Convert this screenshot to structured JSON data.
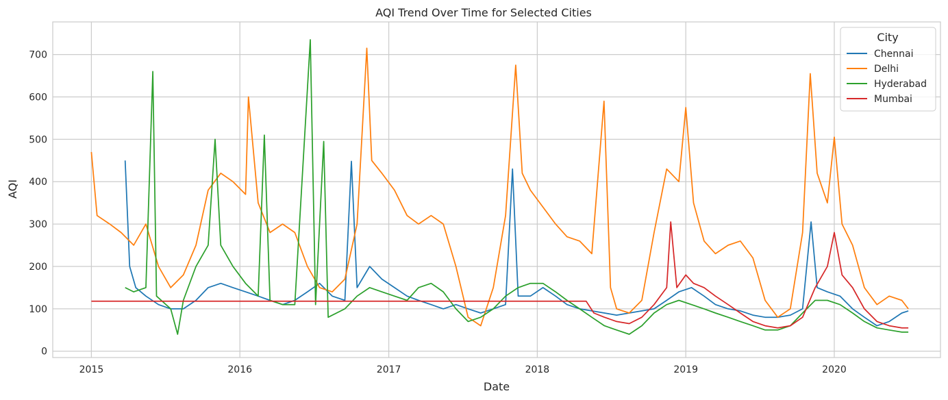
{
  "chart_data": {
    "type": "line",
    "title": "AQI Trend Over Time for Selected Cities",
    "xlabel": "Date",
    "ylabel": "AQI",
    "xlim": [
      "2014-09-28",
      "2020-09-18"
    ],
    "ylim": [
      -15,
      777
    ],
    "x_ticks": [
      "2015",
      "2016",
      "2017",
      "2018",
      "2019",
      "2020"
    ],
    "y_ticks": [
      0,
      100,
      200,
      300,
      400,
      500,
      600,
      700
    ],
    "grid": true,
    "legend": {
      "title": "City",
      "position": "top-right"
    },
    "series": [
      {
        "name": "Chennai",
        "color": "#1f77b4",
        "points": [
          [
            "2015-03-25",
            450
          ],
          [
            "2015-04-05",
            200
          ],
          [
            "2015-04-20",
            150
          ],
          [
            "2015-05-15",
            130
          ],
          [
            "2015-06-15",
            110
          ],
          [
            "2015-07-15",
            100
          ],
          [
            "2015-08-15",
            100
          ],
          [
            "2015-09-15",
            120
          ],
          [
            "2015-10-15",
            150
          ],
          [
            "2015-11-15",
            160
          ],
          [
            "2015-12-15",
            150
          ],
          [
            "2016-01-15",
            140
          ],
          [
            "2016-02-15",
            130
          ],
          [
            "2016-03-15",
            120
          ],
          [
            "2016-04-15",
            110
          ],
          [
            "2016-05-15",
            120
          ],
          [
            "2016-06-15",
            140
          ],
          [
            "2016-07-15",
            160
          ],
          [
            "2016-08-15",
            130
          ],
          [
            "2016-09-15",
            120
          ],
          [
            "2016-10-01",
            448
          ],
          [
            "2016-10-15",
            150
          ],
          [
            "2016-11-15",
            200
          ],
          [
            "2016-12-15",
            170
          ],
          [
            "2017-01-15",
            150
          ],
          [
            "2017-02-15",
            130
          ],
          [
            "2017-03-15",
            120
          ],
          [
            "2017-04-15",
            110
          ],
          [
            "2017-05-15",
            100
          ],
          [
            "2017-06-15",
            110
          ],
          [
            "2017-07-15",
            100
          ],
          [
            "2017-08-15",
            90
          ],
          [
            "2017-09-15",
            100
          ],
          [
            "2017-10-15",
            110
          ],
          [
            "2017-11-01",
            430
          ],
          [
            "2017-11-15",
            130
          ],
          [
            "2017-12-15",
            130
          ],
          [
            "2018-01-15",
            150
          ],
          [
            "2018-02-15",
            130
          ],
          [
            "2018-03-15",
            110
          ],
          [
            "2018-04-15",
            100
          ],
          [
            "2018-05-15",
            95
          ],
          [
            "2018-06-15",
            90
          ],
          [
            "2018-07-15",
            85
          ],
          [
            "2018-08-15",
            90
          ],
          [
            "2018-09-15",
            95
          ],
          [
            "2018-10-15",
            100
          ],
          [
            "2018-11-15",
            120
          ],
          [
            "2018-12-15",
            140
          ],
          [
            "2019-01-15",
            150
          ],
          [
            "2019-02-15",
            130
          ],
          [
            "2019-03-15",
            110
          ],
          [
            "2019-04-15",
            100
          ],
          [
            "2019-05-15",
            95
          ],
          [
            "2019-06-15",
            85
          ],
          [
            "2019-07-15",
            80
          ],
          [
            "2019-08-15",
            80
          ],
          [
            "2019-09-15",
            85
          ],
          [
            "2019-10-15",
            100
          ],
          [
            "2019-11-05",
            305
          ],
          [
            "2019-11-20",
            150
          ],
          [
            "2019-12-15",
            140
          ],
          [
            "2020-01-15",
            130
          ],
          [
            "2020-02-15",
            100
          ],
          [
            "2020-03-15",
            80
          ],
          [
            "2020-04-15",
            60
          ],
          [
            "2020-05-15",
            70
          ],
          [
            "2020-06-15",
            90
          ],
          [
            "2020-07-01",
            95
          ]
        ]
      },
      {
        "name": "Delhi",
        "color": "#ff7f0e",
        "points": [
          [
            "2015-01-01",
            470
          ],
          [
            "2015-01-15",
            320
          ],
          [
            "2015-02-15",
            300
          ],
          [
            "2015-03-15",
            280
          ],
          [
            "2015-04-15",
            250
          ],
          [
            "2015-05-15",
            300
          ],
          [
            "2015-06-15",
            200
          ],
          [
            "2015-07-15",
            150
          ],
          [
            "2015-08-15",
            180
          ],
          [
            "2015-09-15",
            250
          ],
          [
            "2015-10-15",
            380
          ],
          [
            "2015-11-15",
            420
          ],
          [
            "2015-12-15",
            400
          ],
          [
            "2016-01-15",
            370
          ],
          [
            "2016-01-22",
            600
          ],
          [
            "2016-02-15",
            350
          ],
          [
            "2016-03-15",
            280
          ],
          [
            "2016-04-15",
            300
          ],
          [
            "2016-05-15",
            280
          ],
          [
            "2016-06-15",
            200
          ],
          [
            "2016-07-15",
            150
          ],
          [
            "2016-08-15",
            140
          ],
          [
            "2016-09-15",
            170
          ],
          [
            "2016-10-15",
            300
          ],
          [
            "2016-11-08",
            715
          ],
          [
            "2016-11-20",
            450
          ],
          [
            "2016-12-15",
            420
          ],
          [
            "2017-01-15",
            380
          ],
          [
            "2017-02-15",
            320
          ],
          [
            "2017-03-15",
            300
          ],
          [
            "2017-04-15",
            320
          ],
          [
            "2017-05-15",
            300
          ],
          [
            "2017-06-15",
            200
          ],
          [
            "2017-07-15",
            80
          ],
          [
            "2017-08-15",
            60
          ],
          [
            "2017-09-15",
            150
          ],
          [
            "2017-10-15",
            320
          ],
          [
            "2017-11-09",
            675
          ],
          [
            "2017-11-25",
            420
          ],
          [
            "2017-12-15",
            380
          ],
          [
            "2018-01-15",
            340
          ],
          [
            "2018-02-15",
            300
          ],
          [
            "2018-03-15",
            270
          ],
          [
            "2018-04-15",
            260
          ],
          [
            "2018-05-15",
            230
          ],
          [
            "2018-06-14",
            590
          ],
          [
            "2018-06-30",
            150
          ],
          [
            "2018-07-15",
            100
          ],
          [
            "2018-08-15",
            90
          ],
          [
            "2018-09-15",
            120
          ],
          [
            "2018-10-15",
            280
          ],
          [
            "2018-11-15",
            430
          ],
          [
            "2018-12-15",
            400
          ],
          [
            "2019-01-01",
            575
          ],
          [
            "2019-01-20",
            350
          ],
          [
            "2019-02-15",
            260
          ],
          [
            "2019-03-15",
            230
          ],
          [
            "2019-04-15",
            250
          ],
          [
            "2019-05-15",
            260
          ],
          [
            "2019-06-15",
            220
          ],
          [
            "2019-07-15",
            120
          ],
          [
            "2019-08-15",
            80
          ],
          [
            "2019-09-15",
            100
          ],
          [
            "2019-10-15",
            280
          ],
          [
            "2019-11-03",
            655
          ],
          [
            "2019-11-20",
            420
          ],
          [
            "2019-12-15",
            350
          ],
          [
            "2020-01-01",
            505
          ],
          [
            "2020-01-20",
            300
          ],
          [
            "2020-02-15",
            250
          ],
          [
            "2020-03-15",
            150
          ],
          [
            "2020-04-15",
            110
          ],
          [
            "2020-05-15",
            130
          ],
          [
            "2020-06-15",
            120
          ],
          [
            "2020-07-01",
            100
          ]
        ]
      },
      {
        "name": "Hyderabad",
        "color": "#2ca02c",
        "points": [
          [
            "2015-03-25",
            150
          ],
          [
            "2015-04-15",
            140
          ],
          [
            "2015-05-15",
            150
          ],
          [
            "2015-06-01",
            660
          ],
          [
            "2015-06-10",
            130
          ],
          [
            "2015-07-15",
            100
          ],
          [
            "2015-08-01",
            40
          ],
          [
            "2015-08-15",
            120
          ],
          [
            "2015-09-15",
            200
          ],
          [
            "2015-10-15",
            250
          ],
          [
            "2015-11-01",
            500
          ],
          [
            "2015-11-15",
            250
          ],
          [
            "2015-12-15",
            200
          ],
          [
            "2016-01-15",
            160
          ],
          [
            "2016-02-15",
            130
          ],
          [
            "2016-03-01",
            510
          ],
          [
            "2016-03-15",
            120
          ],
          [
            "2016-04-15",
            110
          ],
          [
            "2016-05-15",
            110
          ],
          [
            "2016-06-22",
            735
          ],
          [
            "2016-07-05",
            110
          ],
          [
            "2016-07-25",
            495
          ],
          [
            "2016-08-05",
            80
          ],
          [
            "2016-09-15",
            100
          ],
          [
            "2016-10-15",
            130
          ],
          [
            "2016-11-15",
            150
          ],
          [
            "2016-12-15",
            140
          ],
          [
            "2017-01-15",
            130
          ],
          [
            "2017-02-15",
            120
          ],
          [
            "2017-03-15",
            150
          ],
          [
            "2017-04-15",
            160
          ],
          [
            "2017-05-15",
            140
          ],
          [
            "2017-06-15",
            100
          ],
          [
            "2017-07-15",
            70
          ],
          [
            "2017-08-15",
            80
          ],
          [
            "2017-09-15",
            100
          ],
          [
            "2017-10-15",
            130
          ],
          [
            "2017-11-15",
            150
          ],
          [
            "2017-12-15",
            160
          ],
          [
            "2018-01-15",
            160
          ],
          [
            "2018-02-15",
            140
          ],
          [
            "2018-03-15",
            120
          ],
          [
            "2018-04-15",
            100
          ],
          [
            "2018-05-15",
            80
          ],
          [
            "2018-06-15",
            60
          ],
          [
            "2018-07-15",
            50
          ],
          [
            "2018-08-15",
            40
          ],
          [
            "2018-09-15",
            60
          ],
          [
            "2018-10-15",
            90
          ],
          [
            "2018-11-15",
            110
          ],
          [
            "2018-12-15",
            120
          ],
          [
            "2019-01-15",
            110
          ],
          [
            "2019-02-15",
            100
          ],
          [
            "2019-03-15",
            90
          ],
          [
            "2019-04-15",
            80
          ],
          [
            "2019-05-15",
            70
          ],
          [
            "2019-06-15",
            60
          ],
          [
            "2019-07-15",
            50
          ],
          [
            "2019-08-15",
            50
          ],
          [
            "2019-09-15",
            60
          ],
          [
            "2019-10-15",
            90
          ],
          [
            "2019-11-15",
            120
          ],
          [
            "2019-12-15",
            120
          ],
          [
            "2020-01-15",
            110
          ],
          [
            "2020-02-15",
            90
          ],
          [
            "2020-03-15",
            70
          ],
          [
            "2020-04-15",
            55
          ],
          [
            "2020-05-15",
            50
          ],
          [
            "2020-06-15",
            45
          ],
          [
            "2020-07-01",
            45
          ]
        ]
      },
      {
        "name": "Mumbai",
        "color": "#d62728",
        "points": [
          [
            "2015-01-01",
            118
          ],
          [
            "2018-05-01",
            118
          ],
          [
            "2018-05-20",
            90
          ],
          [
            "2018-06-15",
            80
          ],
          [
            "2018-07-15",
            70
          ],
          [
            "2018-08-15",
            65
          ],
          [
            "2018-09-15",
            80
          ],
          [
            "2018-10-15",
            110
          ],
          [
            "2018-11-15",
            150
          ],
          [
            "2018-11-25",
            305
          ],
          [
            "2018-12-10",
            150
          ],
          [
            "2019-01-01",
            180
          ],
          [
            "2019-01-20",
            160
          ],
          [
            "2019-02-15",
            150
          ],
          [
            "2019-03-15",
            130
          ],
          [
            "2019-04-15",
            110
          ],
          [
            "2019-05-15",
            90
          ],
          [
            "2019-06-15",
            70
          ],
          [
            "2019-07-15",
            60
          ],
          [
            "2019-08-15",
            55
          ],
          [
            "2019-09-15",
            60
          ],
          [
            "2019-10-15",
            80
          ],
          [
            "2019-11-15",
            150
          ],
          [
            "2019-12-15",
            200
          ],
          [
            "2020-01-01",
            280
          ],
          [
            "2020-01-20",
            180
          ],
          [
            "2020-02-15",
            150
          ],
          [
            "2020-03-15",
            100
          ],
          [
            "2020-04-15",
            70
          ],
          [
            "2020-05-15",
            60
          ],
          [
            "2020-06-15",
            55
          ],
          [
            "2020-07-01",
            55
          ]
        ]
      }
    ]
  }
}
